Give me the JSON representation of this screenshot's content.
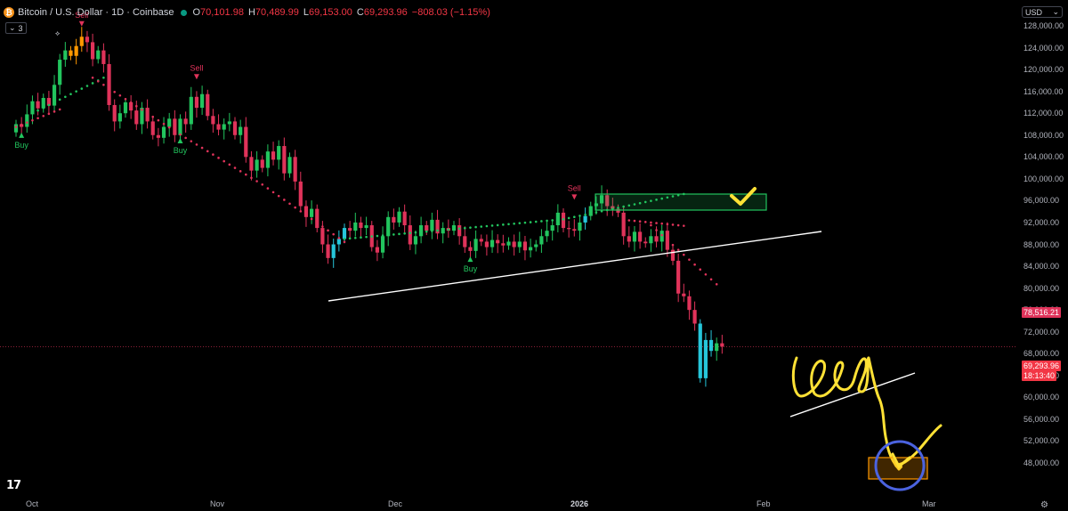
{
  "header": {
    "title": "Bitcoin / U.S. Dollar · 1D · Coinbase",
    "open_label": "O",
    "open": "70,101.98",
    "high_label": "H",
    "high": "70,489.99",
    "low_label": "L",
    "low": "69,153.00",
    "close_label": "C",
    "close": "69,293.96",
    "change": "−808.03 (−1.15%)"
  },
  "indicators_button": {
    "count": "3"
  },
  "currency": {
    "label": "USD"
  },
  "y_axis": {
    "ticks": [
      "128,000.00",
      "124,000.00",
      "120,000.00",
      "116,000.00",
      "112,000.00",
      "108,000.00",
      "104,000.00",
      "100,000.00",
      "96,000.00",
      "92,000.00",
      "88,000.00",
      "84,000.00",
      "80,000.00",
      "76,000.00",
      "72,000.00",
      "68,000.00",
      "64,000.00",
      "60,000.00",
      "56,000.00",
      "52,000.00",
      "48,000.00"
    ]
  },
  "x_axis": {
    "ticks": [
      "Oct",
      "Nov",
      "Dec",
      "2026",
      "Feb",
      "Mar"
    ]
  },
  "price_tags": {
    "indicator_value": "78,516.21",
    "last_price": "69,293.96",
    "countdown": "18:13:40"
  },
  "signals": [
    {
      "label": "Buy",
      "type": "buy"
    },
    {
      "label": "Sell",
      "type": "sell"
    },
    {
      "label": "Sell",
      "type": "sell"
    },
    {
      "label": "Buy",
      "type": "buy"
    },
    {
      "label": "Sell",
      "type": "sell"
    },
    {
      "label": "Buy",
      "type": "buy"
    }
  ],
  "colors": {
    "up": "#22c55e",
    "down": "#e0335a",
    "cyan": "#26c6da",
    "orange": "#ff9800",
    "trend_up": "#22c55e",
    "trend_down": "#e0335a",
    "drawing": "#ffe135",
    "circle": "#4b63e0",
    "box": "#ff9800",
    "buy_sell_buy": "#22c55e",
    "buy_sell_sell": "#e0335a"
  },
  "chart_data": {
    "type": "candlestick",
    "title": "Bitcoin / U.S. Dollar · 1D · Coinbase",
    "ylim": [
      47000,
      129000
    ],
    "y_scale": "linear",
    "x_labels": [
      "Oct",
      "Nov",
      "Dec",
      "2026",
      "Feb",
      "Mar"
    ],
    "candles_close": [
      110000,
      109500,
      111800,
      114200,
      112900,
      114800,
      113400,
      117200,
      121800,
      123500,
      122500,
      124300,
      126000,
      125000,
      121900,
      123500,
      121000,
      113500,
      110500,
      112000,
      114000,
      112500,
      110000,
      113000,
      110500,
      108000,
      107500,
      109500,
      111000,
      108000,
      111000,
      110000,
      115000,
      113000,
      115500,
      111500,
      110000,
      109000,
      110000,
      110500,
      108000,
      109500,
      104000,
      101500,
      103500,
      102000,
      105000,
      103500,
      106000,
      101000,
      104000,
      99500,
      95000,
      93000,
      94500,
      91000,
      88000,
      85500,
      88000,
      89000,
      91000,
      90500,
      92000,
      91000,
      91500,
      87500,
      86500,
      89500,
      93000,
      92000,
      94000,
      91500,
      88000,
      89500,
      91500,
      90500,
      92500,
      90000,
      91000,
      90500,
      91500,
      89500,
      87500,
      86800,
      89000,
      88500,
      87500,
      88800,
      88200,
      87800,
      88500,
      87500,
      88500,
      86900,
      87500,
      88000,
      89500,
      90500,
      91500,
      93800,
      91000,
      90800,
      90500,
      92000,
      93200,
      95000,
      95500,
      97000,
      95000,
      94500,
      93800,
      89500,
      88500,
      90300,
      88500,
      88200,
      89500,
      88500,
      90500,
      87000,
      85000,
      79000,
      78500,
      76000,
      73500,
      63500,
      70500,
      68500,
      69900,
      69293.96
    ],
    "signals": [
      {
        "type": "buy",
        "label": "Buy"
      },
      {
        "type": "sell",
        "label": "Sell"
      },
      {
        "type": "sell",
        "label": "Sell"
      },
      {
        "type": "buy",
        "label": "Buy"
      },
      {
        "type": "sell",
        "label": "Sell"
      },
      {
        "type": "buy",
        "label": "Buy"
      }
    ],
    "last_price": 69293.96,
    "indicator_value": 78516.21,
    "grid": false
  }
}
